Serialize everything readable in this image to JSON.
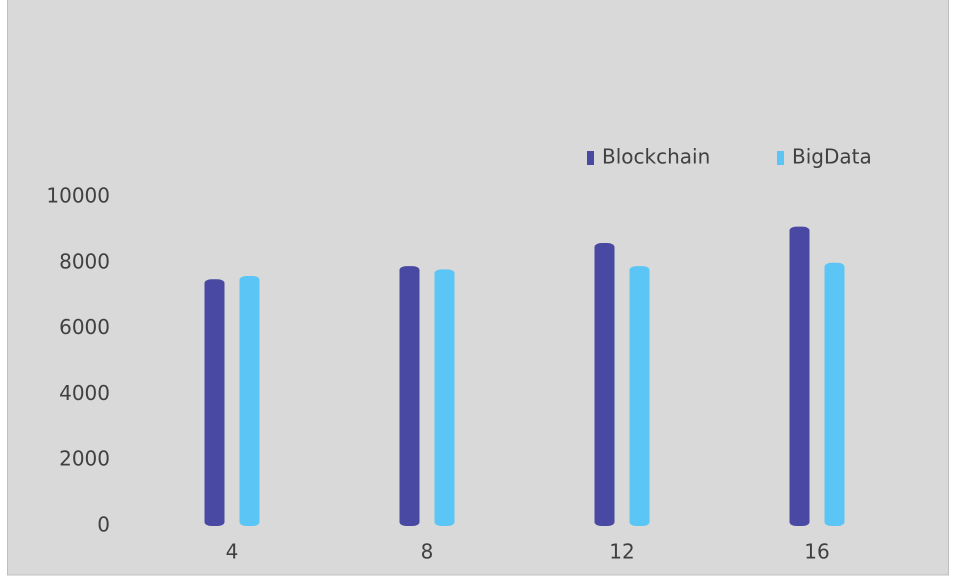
{
  "chart_data": {
    "type": "bar",
    "categories": [
      "4",
      "8",
      "12",
      "16"
    ],
    "series": [
      {
        "name": "Blockchain",
        "color": "#4949a3",
        "values": [
          7500,
          7900,
          8600,
          9100
        ]
      },
      {
        "name": "BigData",
        "color": "#5bc5f6",
        "values": [
          7600,
          7800,
          7900,
          8000
        ]
      }
    ],
    "ylim": [
      0,
      10000
    ],
    "yticks": [
      0,
      2000,
      4000,
      6000,
      8000,
      10000
    ],
    "grid": false,
    "legend": "top-right"
  }
}
